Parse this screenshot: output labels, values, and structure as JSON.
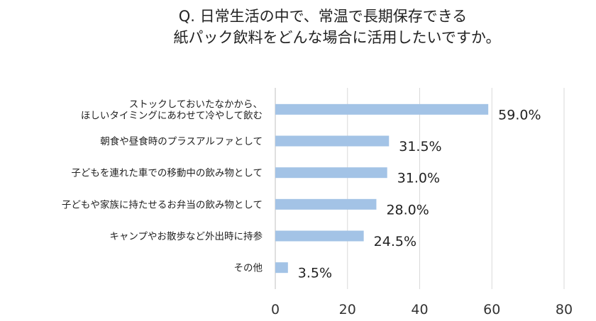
{
  "title_lines": [
    "Q. 日常生活の中で、常温で長期保存できる",
    "紙パック飲料をどんな場合に活用したいですか。"
  ],
  "chart_data": {
    "type": "bar",
    "orientation": "horizontal",
    "title": "Q. 日常生活の中で、常温で長期保存できる 紙パック飲料をどんな場合に活用したいですか。",
    "categories": [
      [
        "ストックしておいたなかから、",
        "ほしいタイミングにあわせて冷やして飲む"
      ],
      [
        "朝食や昼食時のプラスアルファとして"
      ],
      [
        "子どもを連れた車での移動中の飲み物として"
      ],
      [
        "子どもや家族に持たせるお弁当の飲み物として"
      ],
      [
        "キャンプやお散歩など外出時に持参"
      ],
      [
        "その他"
      ]
    ],
    "values": [
      59.0,
      31.5,
      31.0,
      28.0,
      24.5,
      3.5
    ],
    "value_labels": [
      "59.0%",
      "31.5%",
      "31.0%",
      "28.0%",
      "24.5%",
      "3.5%"
    ],
    "xlim": [
      0,
      80
    ],
    "xticks": [
      0,
      20,
      40,
      60,
      80
    ],
    "xlabel": "",
    "ylabel": "",
    "grid": "vertical",
    "bar_color": "#a3c3e6",
    "grid_color": "#d9d9d9"
  }
}
